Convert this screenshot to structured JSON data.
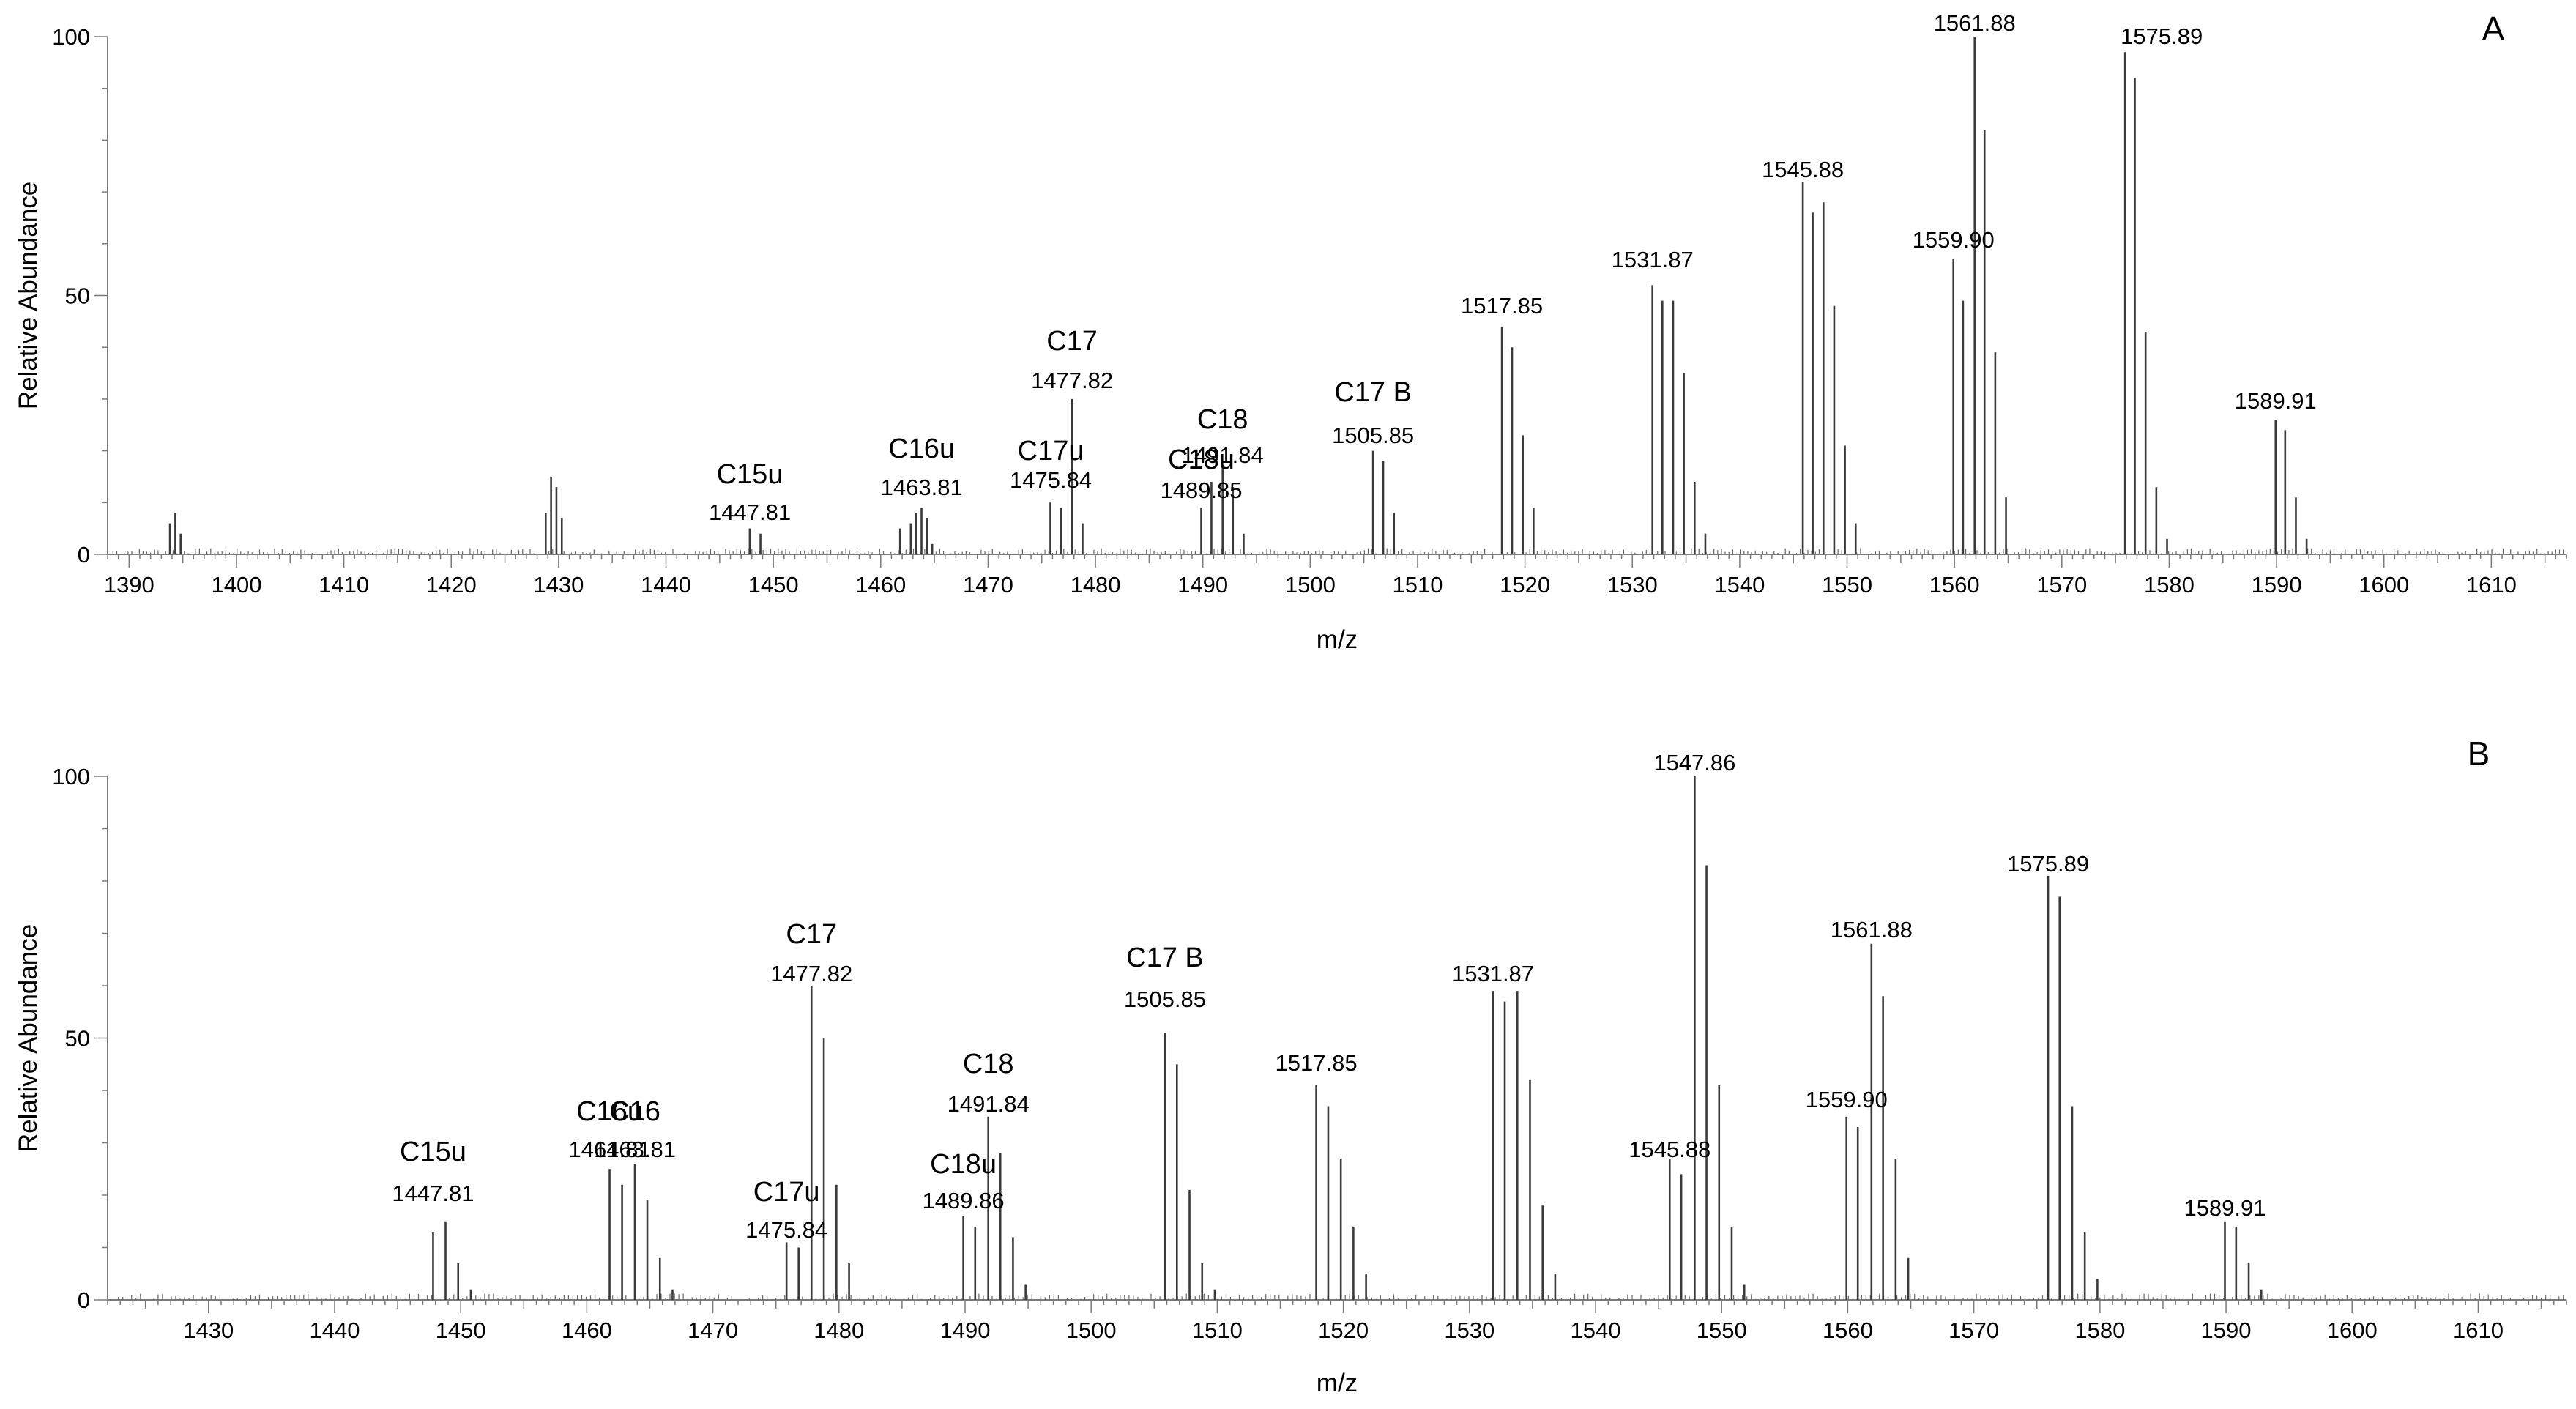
{
  "chart_data": [
    {
      "type": "bar",
      "panel_label": "A",
      "xlabel": "m/z",
      "ylabel": "Relative Abundance",
      "xlim": [
        1388,
        1617
      ],
      "ylim": [
        0,
        100
      ],
      "xticks": [
        1390,
        1400,
        1410,
        1420,
        1430,
        1440,
        1450,
        1460,
        1470,
        1480,
        1490,
        1500,
        1510,
        1520,
        1530,
        1540,
        1550,
        1560,
        1570,
        1580,
        1590,
        1600,
        1610
      ],
      "yticks": [
        0,
        50,
        100
      ],
      "peaks": {
        "mz": [
          1393.8,
          1394.3,
          1394.8,
          1428.8,
          1429.3,
          1429.8,
          1430.3,
          1447.8,
          1448.8,
          1461.8,
          1462.8,
          1463.3,
          1463.8,
          1464.3,
          1464.8,
          1475.8,
          1476.8,
          1477.82,
          1478.8,
          1489.85,
          1490.8,
          1491.84,
          1492.8,
          1493.8,
          1505.85,
          1506.8,
          1507.8,
          1517.85,
          1518.8,
          1519.8,
          1520.8,
          1531.87,
          1532.8,
          1533.8,
          1534.8,
          1535.8,
          1536.8,
          1545.88,
          1546.8,
          1547.8,
          1548.8,
          1549.8,
          1550.8,
          1559.9,
          1560.8,
          1561.88,
          1562.8,
          1563.8,
          1564.8,
          1575.89,
          1576.8,
          1577.8,
          1578.8,
          1579.8,
          1589.91,
          1590.8,
          1591.8,
          1592.8
        ],
        "intensity": [
          6,
          8,
          4,
          8,
          15,
          13,
          7,
          5,
          4,
          5,
          6,
          8,
          9,
          7,
          2,
          10,
          9,
          30,
          6,
          9,
          14,
          17,
          13,
          4,
          20,
          18,
          8,
          44,
          40,
          23,
          9,
          52,
          49,
          49,
          35,
          14,
          4,
          72,
          66,
          68,
          48,
          21,
          6,
          57,
          49,
          100,
          82,
          39,
          11,
          97,
          92,
          43,
          13,
          3,
          26,
          24,
          11,
          3
        ]
      },
      "peak_labels": [
        {
          "mz": 1447.81,
          "name": "C15u",
          "value": "1447.81"
        },
        {
          "mz": 1463.81,
          "name": "C16u",
          "value": "1463.81"
        },
        {
          "mz": 1475.84,
          "name": "C17u",
          "value": "1475.84"
        },
        {
          "mz": 1477.82,
          "name": "C17",
          "value": "1477.82"
        },
        {
          "mz": 1489.85,
          "name": "C18u",
          "value": "1489.85"
        },
        {
          "mz": 1491.84,
          "name": "C18",
          "value": "1491.84"
        },
        {
          "mz": 1505.85,
          "name": "C17 B",
          "value": "1505.85"
        },
        {
          "mz": 1517.85,
          "name": "",
          "value": "1517.85"
        },
        {
          "mz": 1531.87,
          "name": "",
          "value": "1531.87"
        },
        {
          "mz": 1545.88,
          "name": "",
          "value": "1545.88"
        },
        {
          "mz": 1559.9,
          "name": "",
          "value": "1559.90"
        },
        {
          "mz": 1561.88,
          "name": "",
          "value": "1561.88"
        },
        {
          "mz": 1575.89,
          "name": "",
          "value": "1575.89"
        },
        {
          "mz": 1589.91,
          "name": "",
          "value": "1589.91"
        }
      ]
    },
    {
      "type": "bar",
      "panel_label": "B",
      "xlabel": "m/z",
      "ylabel": "Relative Abundance",
      "xlim": [
        1422,
        1617
      ],
      "ylim": [
        0,
        100
      ],
      "xticks": [
        1430,
        1440,
        1450,
        1460,
        1470,
        1480,
        1490,
        1500,
        1510,
        1520,
        1530,
        1540,
        1550,
        1560,
        1570,
        1580,
        1590,
        1600,
        1610
      ],
      "yticks": [
        0,
        50,
        100
      ],
      "peaks": {
        "mz": [
          1447.81,
          1448.8,
          1449.8,
          1450.8,
          1461.81,
          1462.8,
          1463.81,
          1464.8,
          1465.8,
          1466.8,
          1475.84,
          1476.8,
          1477.82,
          1478.8,
          1479.8,
          1480.8,
          1489.86,
          1490.8,
          1491.84,
          1492.8,
          1493.8,
          1494.8,
          1505.85,
          1506.8,
          1507.8,
          1508.8,
          1509.8,
          1517.85,
          1518.8,
          1519.8,
          1520.8,
          1521.8,
          1531.87,
          1532.8,
          1533.8,
          1534.8,
          1535.8,
          1536.8,
          1545.88,
          1546.8,
          1547.86,
          1548.8,
          1549.8,
          1550.8,
          1551.8,
          1559.9,
          1560.8,
          1561.88,
          1562.8,
          1563.8,
          1564.8,
          1575.89,
          1576.8,
          1577.8,
          1578.8,
          1579.8,
          1589.91,
          1590.8,
          1591.8,
          1592.8
        ],
        "intensity": [
          13,
          15,
          7,
          2,
          25,
          22,
          26,
          19,
          8,
          2,
          11,
          10,
          60,
          50,
          22,
          7,
          16,
          14,
          35,
          28,
          12,
          3,
          51,
          45,
          21,
          7,
          2,
          41,
          37,
          27,
          14,
          5,
          59,
          57,
          59,
          42,
          18,
          5,
          27,
          24,
          100,
          83,
          41,
          14,
          3,
          35,
          33,
          68,
          58,
          27,
          8,
          81,
          77,
          37,
          13,
          4,
          15,
          14,
          7,
          2
        ]
      },
      "peak_labels": [
        {
          "mz": 1447.81,
          "name": "C15u",
          "value": "1447.81"
        },
        {
          "mz": 1461.81,
          "name": "C16u",
          "value": "1461.81"
        },
        {
          "mz": 1463.81,
          "name": "C16",
          "value": "1463.81"
        },
        {
          "mz": 1475.84,
          "name": "C17u",
          "value": "1475.84"
        },
        {
          "mz": 1477.82,
          "name": "C17",
          "value": "1477.82"
        },
        {
          "mz": 1489.86,
          "name": "C18u",
          "value": "1489.86"
        },
        {
          "mz": 1491.84,
          "name": "C18",
          "value": "1491.84"
        },
        {
          "mz": 1505.85,
          "name": "C17 B",
          "value": "1505.85"
        },
        {
          "mz": 1517.85,
          "name": "",
          "value": "1517.85"
        },
        {
          "mz": 1531.87,
          "name": "",
          "value": "1531.87"
        },
        {
          "mz": 1545.88,
          "name": "",
          "value": "1545.88"
        },
        {
          "mz": 1547.86,
          "name": "",
          "value": "1547.86"
        },
        {
          "mz": 1559.9,
          "name": "",
          "value": "1559.90"
        },
        {
          "mz": 1561.88,
          "name": "",
          "value": "1561.88"
        },
        {
          "mz": 1575.89,
          "name": "",
          "value": "1575.89"
        },
        {
          "mz": 1589.91,
          "name": "",
          "value": "1589.91"
        }
      ]
    }
  ]
}
